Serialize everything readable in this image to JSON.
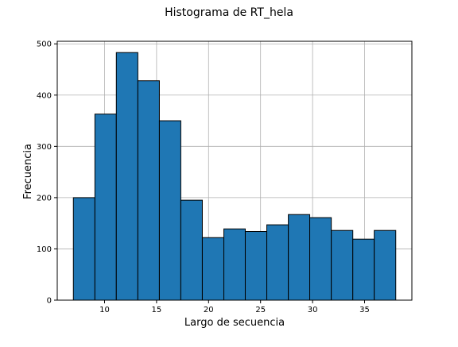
{
  "chart_data": {
    "type": "bar",
    "title": "Histograma de RT_hela",
    "xlabel": "Largo de secuencia",
    "ylabel": "Frecuencia",
    "xlim": [
      5.45,
      39.55
    ],
    "ylim": [
      0,
      505
    ],
    "x_ticks": [
      10,
      15,
      20,
      25,
      30,
      35
    ],
    "y_ticks": [
      0,
      100,
      200,
      300,
      400,
      500
    ],
    "grid": true,
    "bin_edges": [
      7.0,
      9.07,
      11.13,
      13.2,
      15.27,
      17.33,
      19.4,
      21.47,
      23.53,
      25.6,
      27.67,
      29.73,
      31.8,
      33.87,
      35.93,
      38.0
    ],
    "values": [
      200,
      363,
      483,
      428,
      350,
      195,
      122,
      139,
      134,
      147,
      167,
      161,
      136,
      119,
      136
    ],
    "colors": {
      "bar_fill": "#1f77b4",
      "bar_edge": "#000000",
      "grid": "#b0b0b0",
      "axes": "#000000"
    }
  }
}
